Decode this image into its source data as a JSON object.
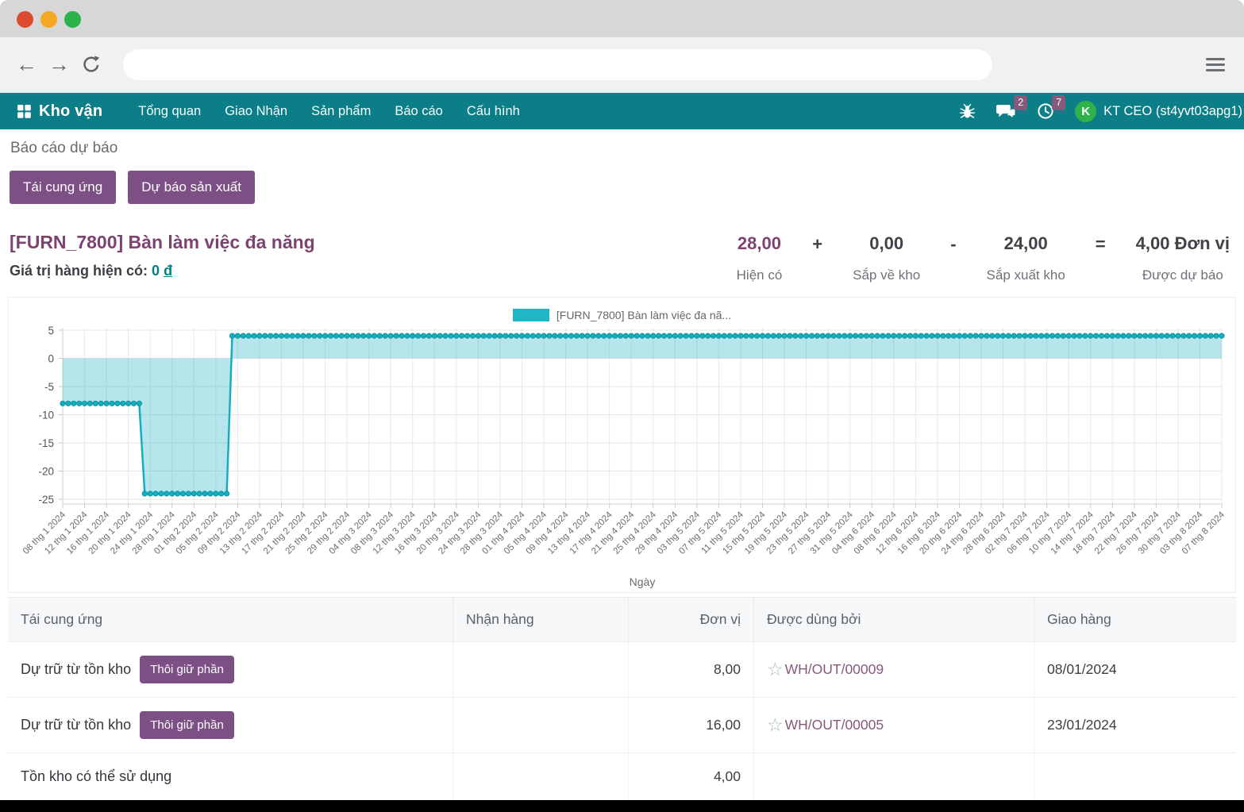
{
  "browser": {
    "url_value": "",
    "traffic_light_colors": [
      "#dc4b2d",
      "#f6a823",
      "#2cb24a"
    ],
    "icons": [
      "back-arrow-icon",
      "forward-arrow-icon",
      "reload-icon",
      "menu-icon"
    ]
  },
  "navbar": {
    "bg_color": "#0c7e87",
    "brand": "Kho vận",
    "brand_icon": "apps-grid-icon",
    "items": [
      "Tổng quan",
      "Giao Nhận",
      "Sản phẩm",
      "Báo cáo",
      "Cấu hình"
    ],
    "right_icons": [
      "bug-icon",
      "chat-icon",
      "activity-clock-icon"
    ],
    "chat_badge": "2",
    "activity_badge": "7",
    "avatar_initial": "K",
    "avatar_color": "#2eb34a",
    "user": "KT CEO (st4yvt03apg1)"
  },
  "breadcrumb": "Báo cáo dự báo",
  "actions": {
    "replenish": "Tái cung ứng",
    "forecast_production": "Dự báo sản xuất"
  },
  "product": {
    "title": "[FURN_7800] Bàn làm việc đa năng",
    "stock_value_label": "Giá trị hàng hiện có:",
    "stock_value_amount": "0",
    "stock_value_currency": "đ"
  },
  "stats": {
    "items": [
      {
        "value": "28,00",
        "label": "Hiện có",
        "highlight": true
      },
      {
        "value": "0,00",
        "label": "Sắp về kho",
        "highlight": false
      },
      {
        "value": "24,00",
        "label": "Sắp xuất kho",
        "highlight": false
      },
      {
        "value": "4,00 Đơn vị",
        "label": "Được dự báo",
        "highlight": false
      }
    ],
    "operators": [
      "+",
      "-",
      "="
    ]
  },
  "chart_data": {
    "type": "area",
    "legend": "[FURN_7800] Bàn làm việc đa nã...",
    "line_color": "#16aebe",
    "marker_stroke": "#0d95a4",
    "area_color": "rgba(32,178,193,0.33)",
    "xlabel": "Ngày",
    "x_start_date": "2024-01-08",
    "x_end_date": "2024-08-07",
    "point_interval_days": 1,
    "tick_interval_days": 4,
    "y_ticks": [
      5,
      0,
      -5,
      -10,
      -15,
      -20,
      -25
    ],
    "ylim": [
      -27,
      6
    ],
    "segments": [
      {
        "start": "2024-01-08",
        "end": "2024-01-22",
        "value": -8
      },
      {
        "start": "2024-01-23",
        "end": "2024-02-07",
        "value": -24
      },
      {
        "start": "2024-02-08",
        "end": "2024-08-07",
        "value": 4
      }
    ],
    "x_tick_labels": [
      "08 thg 1 2024",
      "12 thg 1 2024",
      "16 thg 1 2024",
      "20 thg 1 2024",
      "24 thg 1 2024",
      "28 thg 1 2024",
      "01 thg 2 2024",
      "05 thg 2 2024",
      "09 thg 2 2024",
      "13 thg 2 2024",
      "17 thg 2 2024",
      "21 thg 2 2024",
      "25 thg 2 2024",
      "29 thg 2 2024",
      "04 thg 3 2024",
      "08 thg 3 2024",
      "12 thg 3 2024",
      "16 thg 3 2024",
      "20 thg 3 2024",
      "24 thg 3 2024",
      "28 thg 3 2024",
      "01 thg 4 2024",
      "05 thg 4 2024",
      "09 thg 4 2024",
      "13 thg 4 2024",
      "17 thg 4 2024",
      "21 thg 4 2024",
      "25 thg 4 2024",
      "29 thg 4 2024",
      "03 thg 5 2024",
      "07 thg 5 2024",
      "11 thg 5 2024",
      "15 thg 5 2024",
      "19 thg 5 2024",
      "23 thg 5 2024",
      "27 thg 5 2024",
      "31 thg 5 2024",
      "04 thg 6 2024",
      "08 thg 6 2024",
      "12 thg 6 2024",
      "16 thg 6 2024",
      "20 thg 6 2024",
      "24 thg 6 2024",
      "28 thg 6 2024",
      "02 thg 7 2024",
      "06 thg 7 2024",
      "10 thg 7 2024",
      "14 thg 7 2024",
      "18 thg 7 2024",
      "22 thg 7 2024",
      "26 thg 7 2024",
      "30 thg 7 2024",
      "03 thg 8 2024",
      "07 thg 8 2024"
    ]
  },
  "table": {
    "headers": [
      "Tái cung ứng",
      "Nhận hàng",
      "Đơn vị",
      "Được dùng bởi",
      "Giao hàng"
    ],
    "star_icon": "star-outline-icon",
    "rows": [
      {
        "name": "Dự trữ từ tồn kho",
        "button": "Thôi giữ phần",
        "receipt": "",
        "qty": "8,00",
        "used_by": "WH/OUT/00009",
        "delivery": "08/01/2024"
      },
      {
        "name": "Dự trữ từ tồn kho",
        "button": "Thôi giữ phần",
        "receipt": "",
        "qty": "16,00",
        "used_by": "WH/OUT/00005",
        "delivery": "23/01/2024"
      },
      {
        "name": "Tồn kho có thể sử dụng",
        "button": "",
        "receipt": "",
        "qty": "4,00",
        "used_by": "",
        "delivery": ""
      }
    ]
  }
}
